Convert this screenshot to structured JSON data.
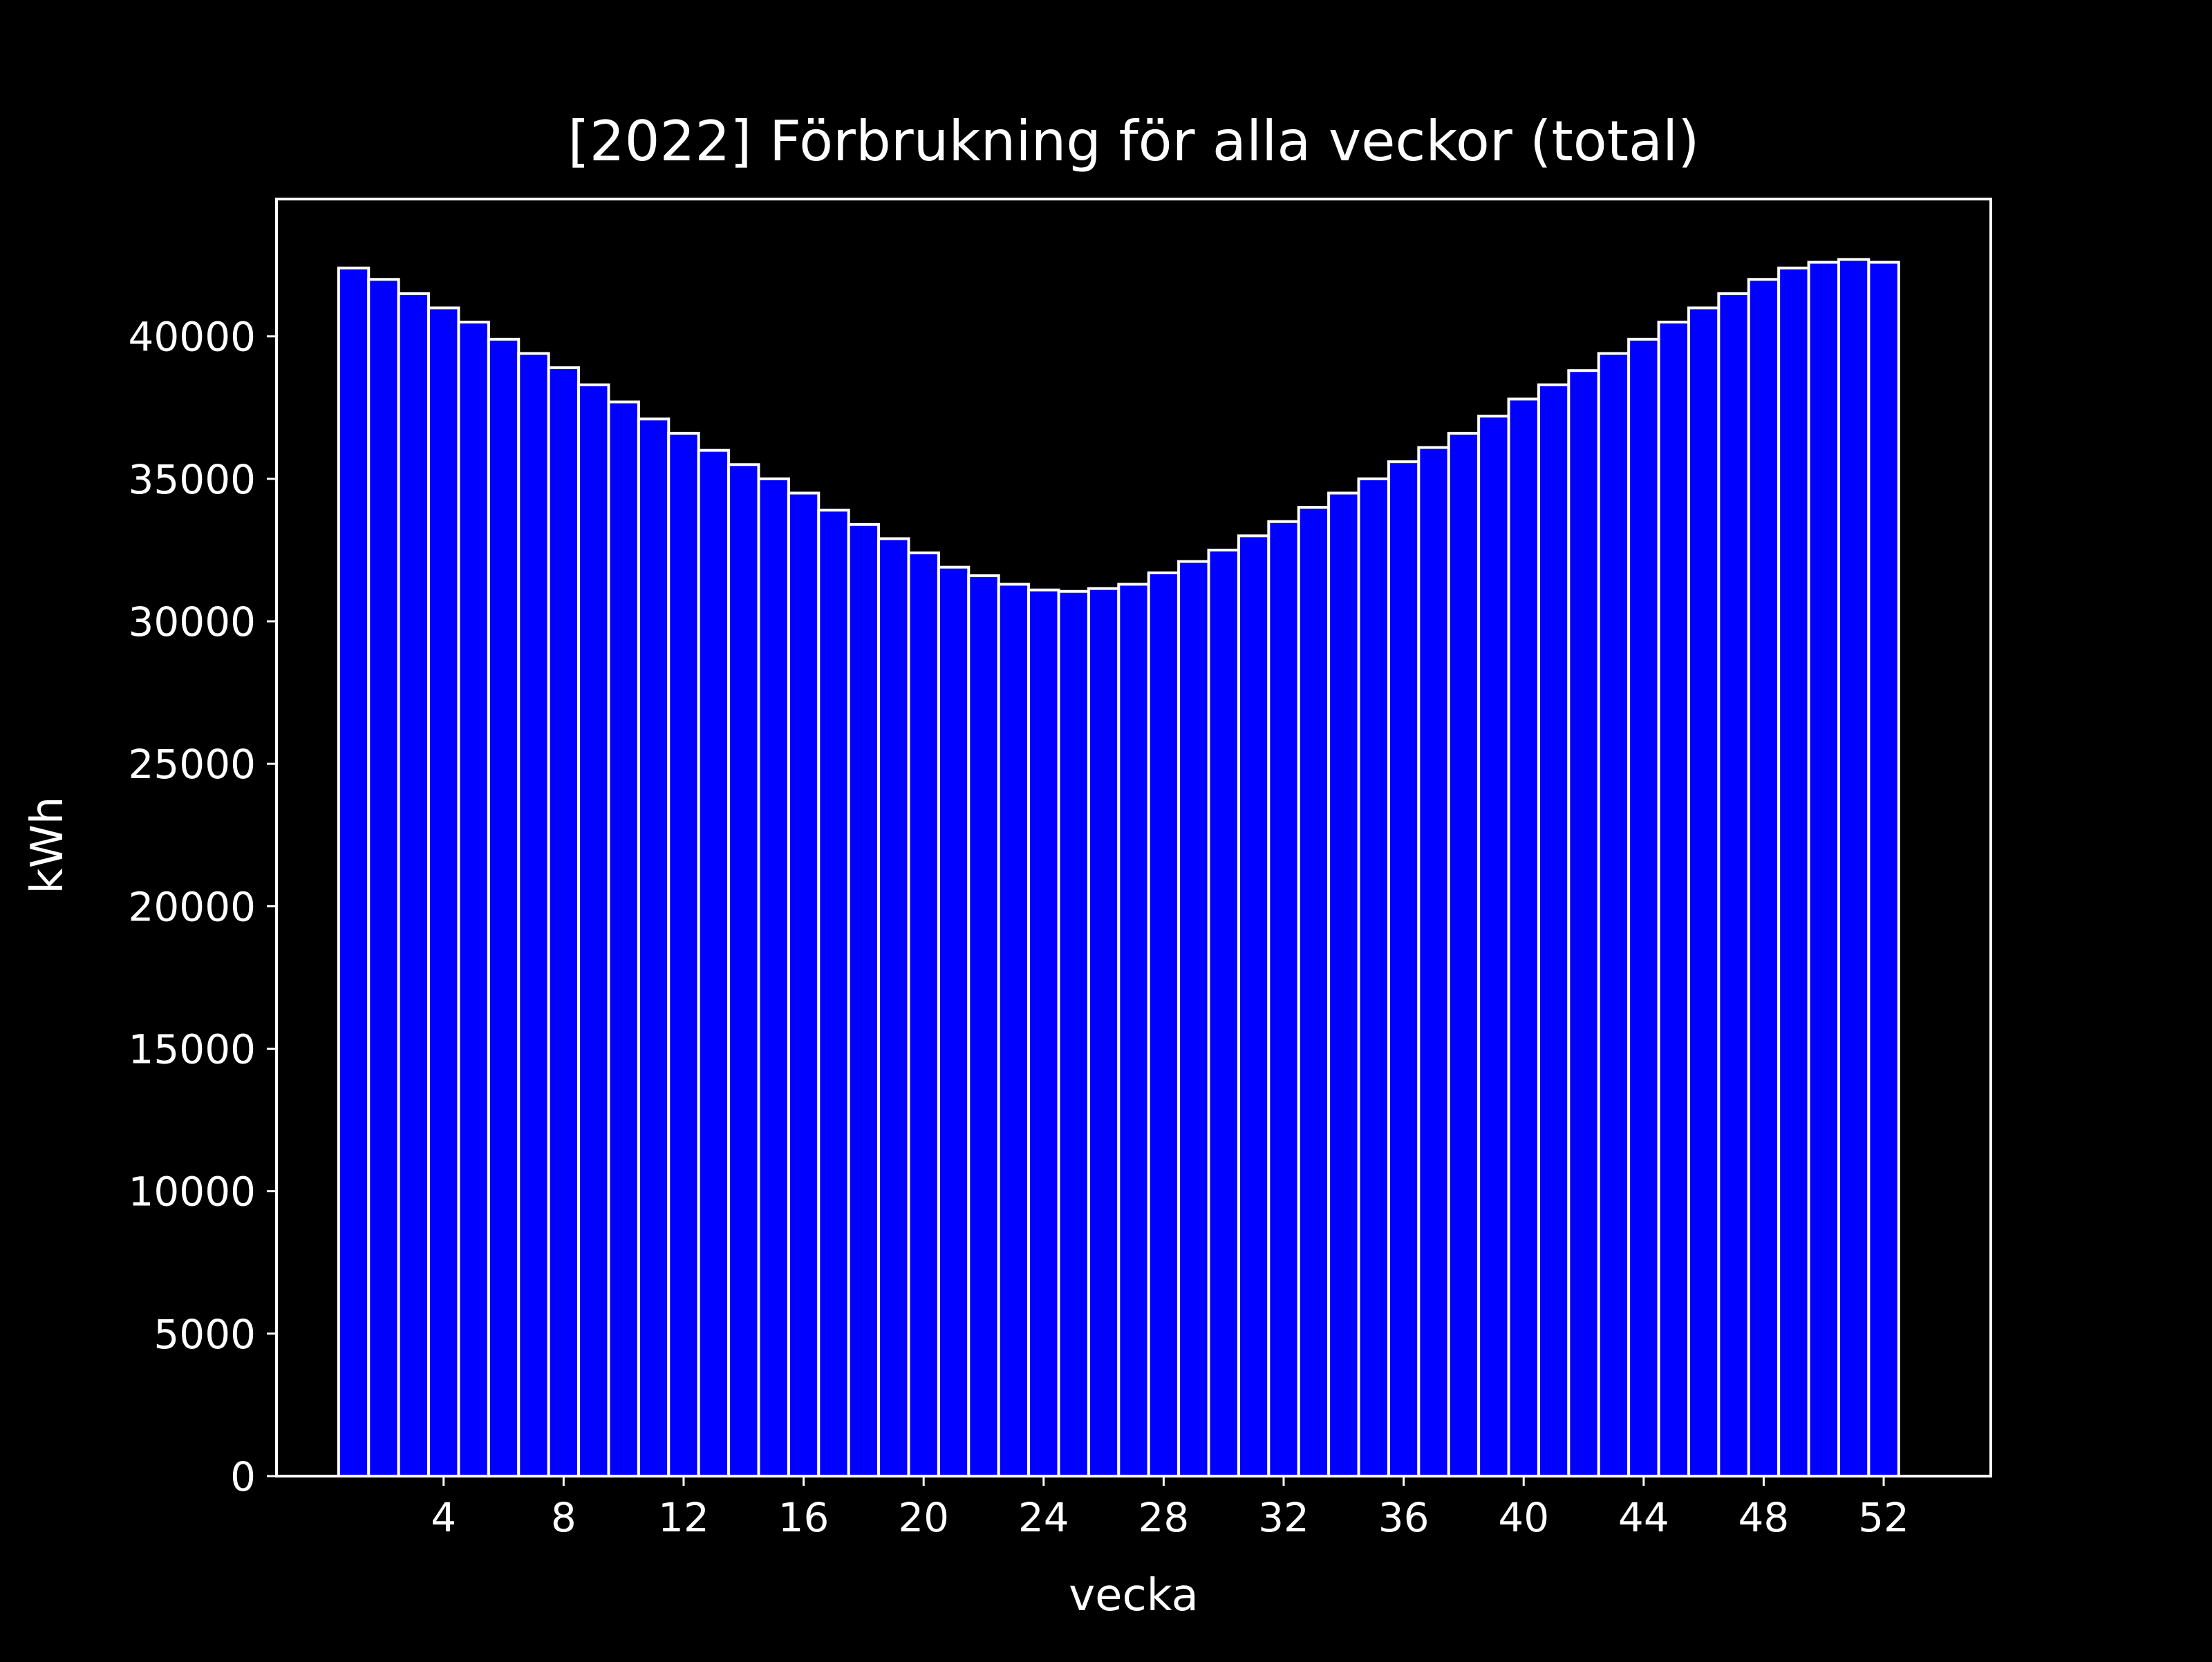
{
  "chart_data": {
    "type": "bar",
    "title": "[2022] Förbrukning för alla veckor (total)",
    "xlabel": "vecka",
    "ylabel": "kWh",
    "x": [
      1,
      2,
      3,
      4,
      5,
      6,
      7,
      8,
      9,
      10,
      11,
      12,
      13,
      14,
      15,
      16,
      17,
      18,
      19,
      20,
      21,
      22,
      23,
      24,
      25,
      26,
      27,
      28,
      29,
      30,
      31,
      32,
      33,
      34,
      35,
      36,
      37,
      38,
      39,
      40,
      41,
      42,
      43,
      44,
      45,
      46,
      47,
      48,
      49,
      50,
      51,
      52
    ],
    "values": [
      42400,
      42000,
      41500,
      41000,
      40500,
      39900,
      39400,
      38900,
      38300,
      37700,
      37100,
      36600,
      36000,
      35500,
      35000,
      34500,
      33900,
      33400,
      32900,
      32400,
      31900,
      31600,
      31300,
      31100,
      31050,
      31150,
      31300,
      31700,
      32100,
      32500,
      33000,
      33500,
      34000,
      34500,
      35000,
      35600,
      36100,
      36600,
      37200,
      37800,
      38300,
      38800,
      39400,
      39900,
      40500,
      41000,
      41500,
      42000,
      42400,
      42600,
      42700,
      42600
    ],
    "xticks": [
      4,
      8,
      12,
      16,
      20,
      24,
      28,
      32,
      36,
      40,
      44,
      48,
      52
    ],
    "yticks": [
      0,
      5000,
      10000,
      15000,
      20000,
      25000,
      30000,
      35000,
      40000
    ],
    "xlim": [
      -1.57,
      55.57
    ],
    "ylim": [
      0,
      44820
    ],
    "grid": false,
    "legend": "none",
    "colors": {
      "background": "#000000",
      "bar_fill": "#0000ff",
      "bar_edge": "#ffffff",
      "text": "#ffffff"
    }
  }
}
